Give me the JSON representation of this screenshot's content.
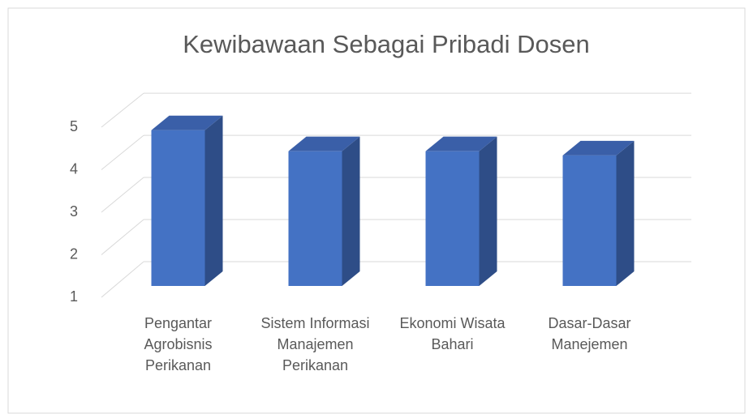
{
  "chart_data": {
    "type": "bar3d",
    "title": "Kewibawaan Sebagai Pribadi Dosen",
    "categories": [
      "Pengantar Agrobisnis Perikanan",
      "Sistem Informasi Manajemen Perikanan",
      "Ekonomi Wisata Bahari",
      "Dasar-Dasar Manejemen"
    ],
    "values": [
      4.7,
      4.2,
      4.2,
      4.1
    ],
    "color": "#4472c4",
    "ylim": [
      1,
      5
    ],
    "yticks": [
      1,
      2,
      3,
      4,
      5
    ],
    "grid": true
  }
}
